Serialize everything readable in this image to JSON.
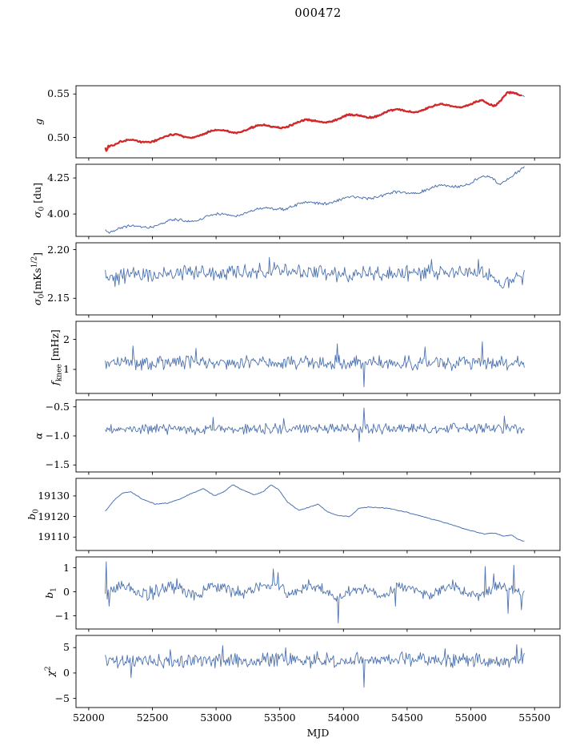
{
  "title": "000472",
  "chart_data": {
    "type": "line",
    "title": "000472",
    "xlabel": "MJD",
    "x_range": [
      51900,
      55700
    ],
    "x_ticks": [
      52000,
      52500,
      53000,
      53500,
      54000,
      54500,
      55000,
      55500
    ],
    "x_data_range": [
      52130,
      55420
    ],
    "grid": false,
    "legend": "none",
    "panels": [
      {
        "name": "g",
        "ylabel_text": "g",
        "ylabel_html": "<i>g</i>",
        "ylim": [
          0.4765,
          0.5595
        ],
        "yticks": [
          {
            "v": 0.5,
            "label": "0.50"
          },
          {
            "v": 0.55,
            "label": "0.55"
          }
        ],
        "series": [
          {
            "name": "g-fit-blue",
            "color": "#4c72b0",
            "lw": 1.0,
            "seed": 101,
            "n": 420,
            "noise": 0.0007,
            "wave": {
              "amp": 0.0028,
              "period": 350,
              "phase": 52300
            },
            "trend": [
              [
                52130,
                0.4912
              ],
              [
                52140,
                0.4858
              ],
              [
                52152,
                0.4922
              ],
              [
                52200,
                0.4925
              ],
              [
                52500,
                0.4978
              ],
              [
                53000,
                0.5058
              ],
              [
                53500,
                0.5138
              ],
              [
                54000,
                0.5225
              ],
              [
                54500,
                0.5308
              ],
              [
                54800,
                0.536
              ],
              [
                55000,
                0.5388
              ],
              [
                55080,
                0.5402
              ],
              [
                55140,
                0.5358
              ],
              [
                55190,
                0.5362
              ],
              [
                55240,
                0.546
              ],
              [
                55290,
                0.5548
              ],
              [
                55330,
                0.5528
              ],
              [
                55420,
                0.5448
              ]
            ]
          },
          {
            "name": "g-data-red",
            "color": "#d62728",
            "lw": 2.3,
            "seed": 101,
            "n": 410,
            "noise": 0.0007,
            "x_end": 55400,
            "wave": {
              "amp": 0.0028,
              "period": 350,
              "phase": 52300
            },
            "trend": [
              [
                52130,
                0.4912
              ],
              [
                52140,
                0.4858
              ],
              [
                52152,
                0.4922
              ],
              [
                52200,
                0.4925
              ],
              [
                52500,
                0.4978
              ],
              [
                53000,
                0.5058
              ],
              [
                53500,
                0.5138
              ],
              [
                54000,
                0.5225
              ],
              [
                54500,
                0.5308
              ],
              [
                54800,
                0.536
              ],
              [
                55000,
                0.5388
              ],
              [
                55080,
                0.5402
              ],
              [
                55140,
                0.5358
              ],
              [
                55190,
                0.5362
              ],
              [
                55240,
                0.546
              ],
              [
                55290,
                0.5548
              ],
              [
                55330,
                0.5528
              ],
              [
                55420,
                0.5448
              ]
            ]
          }
        ]
      },
      {
        "name": "sigma0-du",
        "ylabel_text": "σ0 [du]",
        "ylabel_html": "<i>σ</i><sub>0</sub> [du]",
        "ylim": [
          3.845,
          4.345
        ],
        "yticks": [
          {
            "v": 4.0,
            "label": "4.00"
          },
          {
            "v": 4.25,
            "label": "4.25"
          }
        ],
        "series": [
          {
            "name": "sigma0-du",
            "color": "#4c72b0",
            "lw": 1.0,
            "seed": 202,
            "n": 420,
            "noise": 0.006,
            "wave": {
              "amp": 0.014,
              "period": 350,
              "phase": 52300
            },
            "trend": [
              [
                52130,
                3.905
              ],
              [
                52160,
                3.885
              ],
              [
                52220,
                3.89
              ],
              [
                52500,
                3.925
              ],
              [
                53000,
                3.985
              ],
              [
                53500,
                4.045
              ],
              [
                54000,
                4.1
              ],
              [
                54300,
                4.13
              ],
              [
                54500,
                4.15
              ],
              [
                54800,
                4.19
              ],
              [
                55000,
                4.215
              ],
              [
                55080,
                4.245
              ],
              [
                55150,
                4.25
              ],
              [
                55220,
                4.215
              ],
              [
                55280,
                4.25
              ],
              [
                55350,
                4.285
              ],
              [
                55420,
                4.315
              ]
            ]
          }
        ]
      },
      {
        "name": "sigma0-mK",
        "ylabel_text": "σ0[mKs1/2]",
        "ylabel_html": "<i>σ</i><sub>0</sub>[mKs<sup>1/2</sup>]",
        "ylim": [
          2.133,
          2.207
        ],
        "yticks": [
          {
            "v": 2.15,
            "label": "2.15"
          },
          {
            "v": 2.2,
            "label": "2.20"
          }
        ],
        "series": [
          {
            "name": "sigma0-mK",
            "color": "#4c72b0",
            "lw": 0.9,
            "seed": 303,
            "n": 430,
            "noise": 0.0048,
            "trend": [
              [
                52130,
                2.172
              ],
              [
                52500,
                2.174
              ],
              [
                53000,
                2.176
              ],
              [
                53400,
                2.179
              ],
              [
                53700,
                2.176
              ],
              [
                54000,
                2.174
              ],
              [
                54500,
                2.176
              ],
              [
                55000,
                2.177
              ],
              [
                55150,
                2.174
              ],
              [
                55250,
                2.163
              ],
              [
                55330,
                2.17
              ],
              [
                55420,
                2.173
              ]
            ],
            "spikes": [
              [
                53420,
                2.192
              ],
              [
                52210,
                2.162
              ],
              [
                54690,
                2.19
              ],
              [
                55060,
                2.19
              ]
            ]
          }
        ]
      },
      {
        "name": "f-knee",
        "ylabel_text": "fknee [mHz]",
        "ylabel_html": "<i>f</i><sub>knee</sub> [mHz]",
        "ylim": [
          0.2,
          2.6
        ],
        "yticks": [
          {
            "v": 1,
            "label": "1"
          },
          {
            "v": 2,
            "label": "2"
          }
        ],
        "series": [
          {
            "name": "f-knee",
            "color": "#4c72b0",
            "lw": 0.9,
            "seed": 404,
            "n": 440,
            "noise": 0.14,
            "trend": [
              [
                52130,
                1.22
              ],
              [
                55420,
                1.21
              ]
            ],
            "spikes": [
              [
                52350,
                1.78
              ],
              [
                52840,
                1.7
              ],
              [
                53950,
                1.85
              ],
              [
                54160,
                0.42
              ],
              [
                54640,
                1.75
              ],
              [
                55090,
                1.92
              ]
            ]
          }
        ]
      },
      {
        "name": "alpha",
        "ylabel_text": "α",
        "ylabel_html": "<i>α</i>",
        "ylim": [
          -1.62,
          -0.38
        ],
        "yticks": [
          {
            "v": -1.5,
            "label": "−1.5"
          },
          {
            "v": -1.0,
            "label": "−1.0"
          },
          {
            "v": -0.5,
            "label": "−0.5"
          }
        ],
        "series": [
          {
            "name": "alpha",
            "color": "#4c72b0",
            "lw": 0.9,
            "seed": 505,
            "n": 440,
            "noise": 0.055,
            "trend": [
              [
                52130,
                -0.885
              ],
              [
                55420,
                -0.875
              ]
            ],
            "spikes": [
              [
                52980,
                -0.68
              ],
              [
                53530,
                -0.7
              ],
              [
                54120,
                -1.1
              ],
              [
                54160,
                -0.52
              ],
              [
                55260,
                -0.66
              ]
            ]
          }
        ]
      },
      {
        "name": "b0",
        "ylabel_text": "b0",
        "ylabel_html": "<i>b</i><sub>0</sub>",
        "ylim": [
          19103.5,
          19138.5
        ],
        "yticks": [
          {
            "v": 19110,
            "label": "19110"
          },
          {
            "v": 19120,
            "label": "19120"
          },
          {
            "v": 19130,
            "label": "19130"
          }
        ],
        "series": [
          {
            "name": "b0",
            "color": "#4c72b0",
            "lw": 1.0,
            "seed": 606,
            "n": 400,
            "noise": 0.12,
            "trend": [
              [
                52130,
                19122.5
              ],
              [
                52200,
                19128.0
              ],
              [
                52270,
                19131.5
              ],
              [
                52330,
                19132.0
              ],
              [
                52420,
                19128.5
              ],
              [
                52520,
                19126.0
              ],
              [
                52620,
                19126.5
              ],
              [
                52700,
                19128.0
              ],
              [
                52800,
                19131.0
              ],
              [
                52900,
                19133.5
              ],
              [
                52990,
                19130.0
              ],
              [
                53060,
                19132.0
              ],
              [
                53130,
                19135.5
              ],
              [
                53200,
                19133.0
              ],
              [
                53300,
                19130.5
              ],
              [
                53370,
                19132.0
              ],
              [
                53430,
                19135.5
              ],
              [
                53490,
                19133.0
              ],
              [
                53560,
                19127.0
              ],
              [
                53650,
                19123.0
              ],
              [
                53730,
                19124.5
              ],
              [
                53800,
                19126.0
              ],
              [
                53870,
                19122.5
              ],
              [
                53950,
                19120.5
              ],
              [
                54050,
                19120.0
              ],
              [
                54120,
                19124.0
              ],
              [
                54200,
                19124.5
              ],
              [
                54350,
                19124.0
              ],
              [
                54500,
                19122.0
              ],
              [
                54650,
                19119.5
              ],
              [
                54800,
                19117.0
              ],
              [
                54950,
                19114.0
              ],
              [
                55100,
                19111.5
              ],
              [
                55180,
                19112.0
              ],
              [
                55250,
                19110.5
              ],
              [
                55320,
                19111.0
              ],
              [
                55370,
                19109.0
              ],
              [
                55420,
                19108.0
              ]
            ]
          }
        ]
      },
      {
        "name": "b1",
        "ylabel_text": "b1",
        "ylabel_html": "<i>b</i><sub>1</sub>",
        "ylim": [
          -1.55,
          1.45
        ],
        "yticks": [
          {
            "v": -1,
            "label": "−1"
          },
          {
            "v": 0,
            "label": "0"
          },
          {
            "v": 1,
            "label": "1"
          }
        ],
        "series": [
          {
            "name": "b1",
            "color": "#4c72b0",
            "lw": 0.9,
            "seed": 707,
            "n": 440,
            "noise": 0.16,
            "wave": {
              "amp": 0.16,
              "period": 370,
              "phase": 52265
            },
            "trend": [
              [
                52130,
                0.0
              ],
              [
                52300,
                0.05
              ],
              [
                53400,
                0.1
              ],
              [
                53500,
                0.35
              ],
              [
                53560,
                0.1
              ],
              [
                54000,
                0.0
              ],
              [
                54500,
                0.08
              ],
              [
                55000,
                0.05
              ],
              [
                55420,
                0.1
              ]
            ],
            "spikes": [
              [
                52138,
                1.25
              ],
              [
                52160,
                -0.6
              ],
              [
                52690,
                0.55
              ],
              [
                53450,
                0.95
              ],
              [
                53490,
                0.8
              ],
              [
                53960,
                -1.3
              ],
              [
                54410,
                -0.6
              ],
              [
                55110,
                1.05
              ],
              [
                55180,
                0.75
              ],
              [
                55290,
                -0.9
              ],
              [
                55340,
                1.1
              ],
              [
                55400,
                -0.75
              ]
            ]
          }
        ]
      },
      {
        "name": "chi2",
        "ylabel_text": "χ2",
        "ylabel_html": "<i>χ</i><sup>2</sup>",
        "ylim": [
          -6.8,
          7.4
        ],
        "yticks": [
          {
            "v": -5,
            "label": "−5"
          },
          {
            "v": 0,
            "label": "0"
          },
          {
            "v": 5,
            "label": "5"
          }
        ],
        "series": [
          {
            "name": "chi2",
            "color": "#4c72b0",
            "lw": 0.9,
            "seed": 808,
            "n": 440,
            "noise": 0.85,
            "trend": [
              [
                52130,
                2.5
              ],
              [
                55420,
                2.6
              ]
            ],
            "spikes": [
              [
                52330,
                -0.9
              ],
              [
                52640,
                4.6
              ],
              [
                53050,
                5.4
              ],
              [
                53550,
                5.0
              ],
              [
                54160,
                -2.8
              ],
              [
                54800,
                4.8
              ],
              [
                55360,
                5.6
              ],
              [
                55400,
                4.9
              ]
            ]
          }
        ]
      }
    ]
  }
}
